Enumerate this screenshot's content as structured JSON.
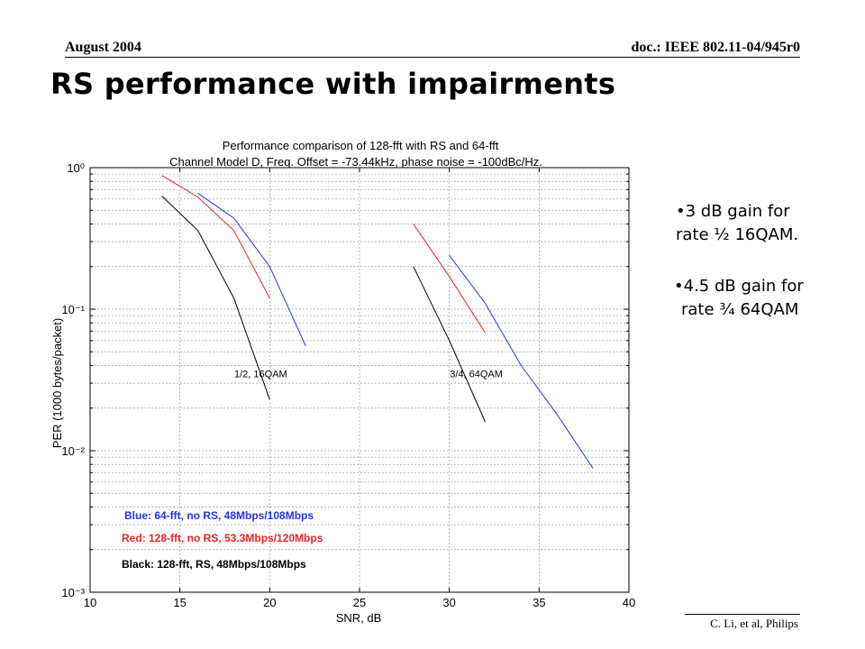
{
  "header": {
    "left": "August 2004",
    "right": "doc.: IEEE 802.11-04/945r0"
  },
  "slide_title": "RS performance with impairments",
  "notes": [
    {
      "line1": "•3 dB gain for",
      "line2": "rate ½ 16QAM."
    },
    {
      "line1": "•4.5 dB gain for",
      "line2": "rate ¾ 64QAM"
    }
  ],
  "footer": "C. Li, et al, Philips",
  "chart_data": {
    "type": "line",
    "title": "Performance comparison of 128-fft with RS and 64-fft",
    "subtitle": "Channel Model D, Freq. Offset = -73.44kHz, phase noise = -100dBc/Hz.",
    "xlabel": "SNR, dB",
    "ylabel": "PER (1000 bytes/packet)",
    "xlim": [
      10,
      40
    ],
    "ylim": [
      0.001,
      1
    ],
    "yscale": "log",
    "grid": true,
    "xticks": [
      "10",
      "15",
      "20",
      "25",
      "30",
      "35",
      "40"
    ],
    "yticks": [
      "10⁻³",
      "10⁻²",
      "10⁻¹",
      "10⁰"
    ],
    "annotations": [
      {
        "text": "1/2, 16QAM",
        "x": 19.5,
        "y": 0.033
      },
      {
        "text": "3/4, 64QAM",
        "x": 31.5,
        "y": 0.033
      }
    ],
    "legend": {
      "placement": "bottom-left",
      "entries": [
        {
          "text": "Blue: 64-fft, no RS, 48Mbps/108Mbps",
          "color": "#2233ee"
        },
        {
          "text": "Red: 128-fft, no RS, 53.3Mbps/120Mbps",
          "color": "#ee2222"
        },
        {
          "text": "Black: 128-fft, RS, 48Mbps/108Mbps",
          "color": "#000000"
        }
      ]
    },
    "series": [
      {
        "color": "#2233ee",
        "x": [
          16,
          18,
          20,
          22
        ],
        "y": [
          0.66,
          0.44,
          0.2,
          0.055
        ]
      },
      {
        "color": "#2233ee",
        "x": [
          30,
          32,
          34,
          36,
          38
        ],
        "y": [
          0.24,
          0.11,
          0.04,
          0.018,
          0.0075
        ]
      },
      {
        "color": "#ee2222",
        "x": [
          14,
          16,
          18,
          20
        ],
        "y": [
          0.88,
          0.62,
          0.36,
          0.12
        ]
      },
      {
        "color": "#ee2222",
        "x": [
          28,
          30,
          32
        ],
        "y": [
          0.4,
          0.17,
          0.068
        ]
      },
      {
        "color": "#000000",
        "x": [
          14,
          16,
          18,
          20
        ],
        "y": [
          0.63,
          0.36,
          0.12,
          0.023
        ]
      },
      {
        "color": "#000000",
        "x": [
          28,
          30,
          32
        ],
        "y": [
          0.2,
          0.06,
          0.016
        ]
      }
    ]
  }
}
